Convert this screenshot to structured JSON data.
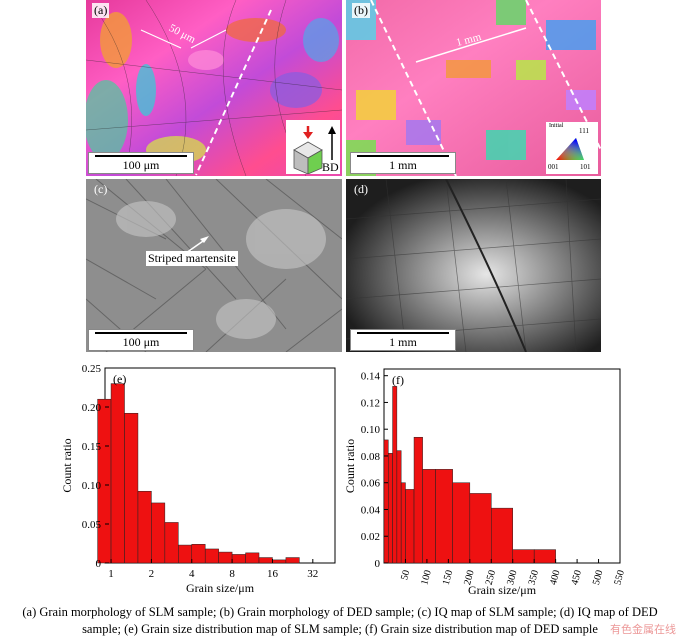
{
  "panels": {
    "a": {
      "label": "(a)",
      "angle_label": "50 μm",
      "scale": "100 μm",
      "bd_label": "BD"
    },
    "b": {
      "label": "(b)",
      "dim_label": "1 mm",
      "scale": "1 mm",
      "legend": {
        "title": "Initial",
        "top": "111",
        "left": "001",
        "right": "101"
      }
    },
    "c": {
      "label": "(c)",
      "annotation": "Striped martensite",
      "scale": "100 μm"
    },
    "d": {
      "label": "(d)",
      "scale": "1 mm"
    }
  },
  "chart_data": [
    {
      "type": "bar",
      "panel_label": "(e)",
      "xlabel": "Grain size/μm",
      "ylabel": "Count ratio",
      "x_scale": "log2",
      "xticks": [
        "1",
        "2",
        "4",
        "8",
        "16",
        "32"
      ],
      "yticks": [
        "0",
        "0.05",
        "0.10",
        "0.15",
        "0.20",
        "0.25"
      ],
      "ylim": [
        0,
        0.25
      ],
      "values": [
        0.21,
        0.23,
        0.192,
        0.092,
        0.077,
        0.052,
        0.023,
        0.024,
        0.018,
        0.014,
        0.011,
        0.013,
        0.007,
        0.004,
        0.007
      ],
      "color": "#ee1111"
    },
    {
      "type": "bar",
      "panel_label": "(f)",
      "xlabel": "Grain size/μm",
      "ylabel": "Count ratio",
      "xticks": [
        "50",
        "100",
        "150",
        "200",
        "250",
        "300",
        "350",
        "400",
        "450",
        "500",
        "550"
      ],
      "yticks": [
        "0",
        "0.02",
        "0.04",
        "0.06",
        "0.08",
        "0.10",
        "0.12",
        "0.14"
      ],
      "ylim": [
        0,
        0.145
      ],
      "xlim": [
        0,
        550
      ],
      "bars": [
        {
          "x0": 0,
          "x1": 10,
          "value": 0.092
        },
        {
          "x0": 10,
          "x1": 20,
          "value": 0.082
        },
        {
          "x0": 20,
          "x1": 30,
          "value": 0.132
        },
        {
          "x0": 30,
          "x1": 40,
          "value": 0.084
        },
        {
          "x0": 40,
          "x1": 50,
          "value": 0.06
        },
        {
          "x0": 50,
          "x1": 70,
          "value": 0.055
        },
        {
          "x0": 70,
          "x1": 90,
          "value": 0.094
        },
        {
          "x0": 90,
          "x1": 120,
          "value": 0.07
        },
        {
          "x0": 120,
          "x1": 160,
          "value": 0.07
        },
        {
          "x0": 160,
          "x1": 200,
          "value": 0.06
        },
        {
          "x0": 200,
          "x1": 250,
          "value": 0.052
        },
        {
          "x0": 250,
          "x1": 300,
          "value": 0.041
        },
        {
          "x0": 300,
          "x1": 350,
          "value": 0.01
        },
        {
          "x0": 350,
          "x1": 400,
          "value": 0.01
        }
      ],
      "color": "#ee1111"
    }
  ],
  "caption": {
    "line1": "(a) Grain morphology of SLM sample; (b) Grain morphology of DED sample; (c) IQ map of SLM sample; (d) IQ map of DED",
    "line2": "sample; (e) Grain size distribution map of SLM sample; (f) Grain size distribution map of DED sample"
  },
  "watermark": "有色金属在线"
}
